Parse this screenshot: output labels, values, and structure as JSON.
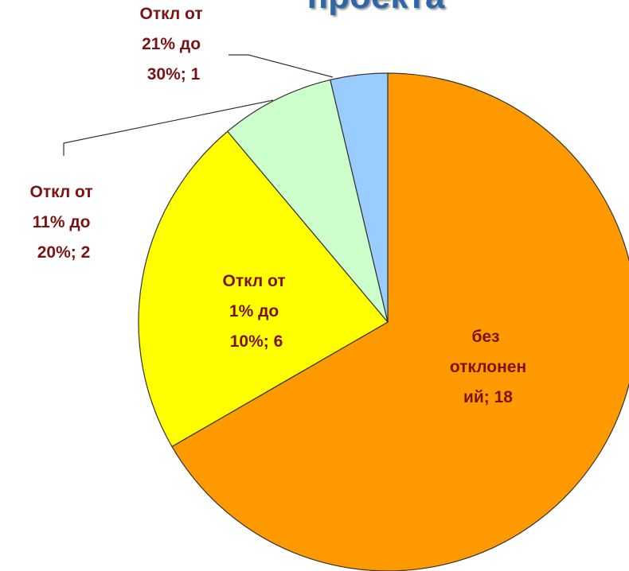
{
  "chart_data": {
    "type": "pie",
    "title": "проекта",
    "categories": [
      "без отклонений",
      "Откл от 1% до 10%",
      "Откл от 11% до 20%",
      "Откл от 21% до 30%"
    ],
    "values": [
      18,
      6,
      2,
      1
    ],
    "value_labels": [
      "без отклонений; 18",
      "Откл от 1% до 10%; 6",
      "Откл от 11% до 20%; 2",
      "Откл от 21% до 30%; 1"
    ],
    "colors": [
      "#ff9900",
      "#ffff00",
      "#ccffcc",
      "#99ccff"
    ]
  }
}
